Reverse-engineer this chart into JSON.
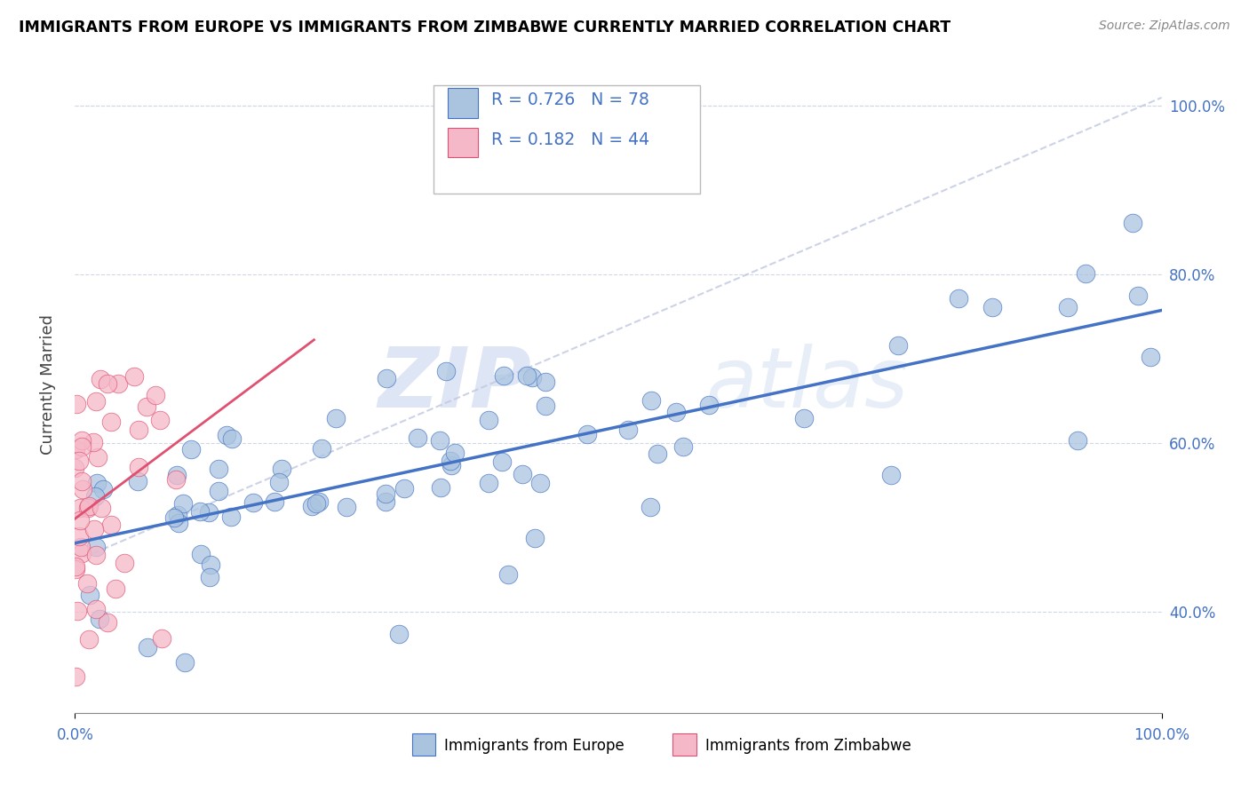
{
  "title": "IMMIGRANTS FROM EUROPE VS IMMIGRANTS FROM ZIMBABWE CURRENTLY MARRIED CORRELATION CHART",
  "source": "Source: ZipAtlas.com",
  "ylabel": "Currently Married",
  "legend_label_1": "Immigrants from Europe",
  "legend_label_2": "Immigrants from Zimbabwe",
  "R1": 0.726,
  "N1": 78,
  "R2": 0.182,
  "N2": 44,
  "color_blue": "#aac4e0",
  "color_pink": "#f5b8c8",
  "line_color_blue": "#4472c4",
  "line_color_pink": "#e05070",
  "dash_color": "#c0c8e0",
  "bg_color": "#ffffff",
  "grid_color": "#d0d8e8",
  "axis_label_color": "#4472c4",
  "watermark_zip": "ZIP",
  "watermark_atlas": "atlas",
  "xlim": [
    0.0,
    1.0
  ],
  "ylim": [
    0.28,
    1.06
  ],
  "y_ticks": [
    0.4,
    0.6,
    0.8,
    1.0
  ],
  "y_tick_labels": [
    "40.0%",
    "60.0%",
    "80.0%",
    "100.0%"
  ]
}
